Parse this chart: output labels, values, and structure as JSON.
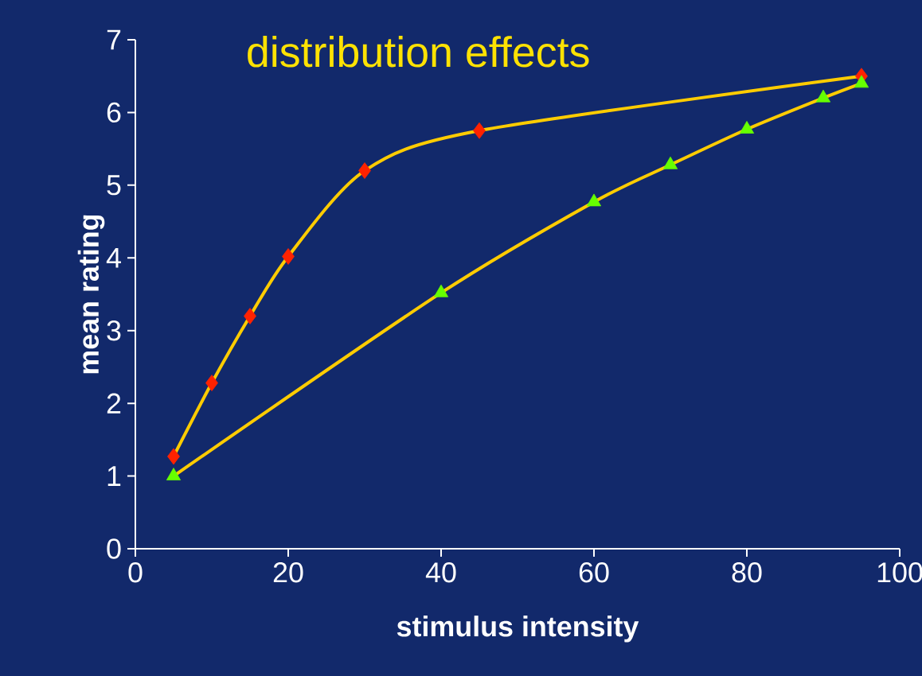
{
  "chart_data": {
    "type": "line",
    "title": "distribution effects",
    "xlabel": "stimulus intensity",
    "ylabel": "mean rating",
    "xlim": [
      0,
      100
    ],
    "ylim": [
      0,
      7
    ],
    "xticks": [
      0,
      20,
      40,
      60,
      80,
      100
    ],
    "yticks": [
      0,
      1,
      2,
      3,
      4,
      5,
      6,
      7
    ],
    "series": [
      {
        "x": [
          5,
          10,
          15,
          20,
          30,
          45,
          95
        ],
        "values": [
          1.27,
          2.28,
          3.2,
          4.02,
          5.2,
          5.75,
          6.5
        ],
        "color": "#ffcc00",
        "colors": [
          "#ff2200",
          "#ff2200",
          "#ff2200",
          "#ff2200",
          "#ff2200",
          "#ff2200",
          "#ff2200"
        ],
        "marker": "diamond"
      },
      {
        "x": [
          5,
          40,
          60,
          70,
          80,
          90,
          95
        ],
        "values": [
          1.0,
          3.52,
          4.77,
          5.28,
          5.77,
          6.2,
          6.4
        ],
        "color": "#ffcc00",
        "colors": [
          "#66ff00",
          "#66ff00",
          "#66ff00",
          "#66ff00",
          "#66ff00",
          "#66ff00",
          "#66ff00"
        ],
        "marker": "triangle"
      }
    ]
  }
}
